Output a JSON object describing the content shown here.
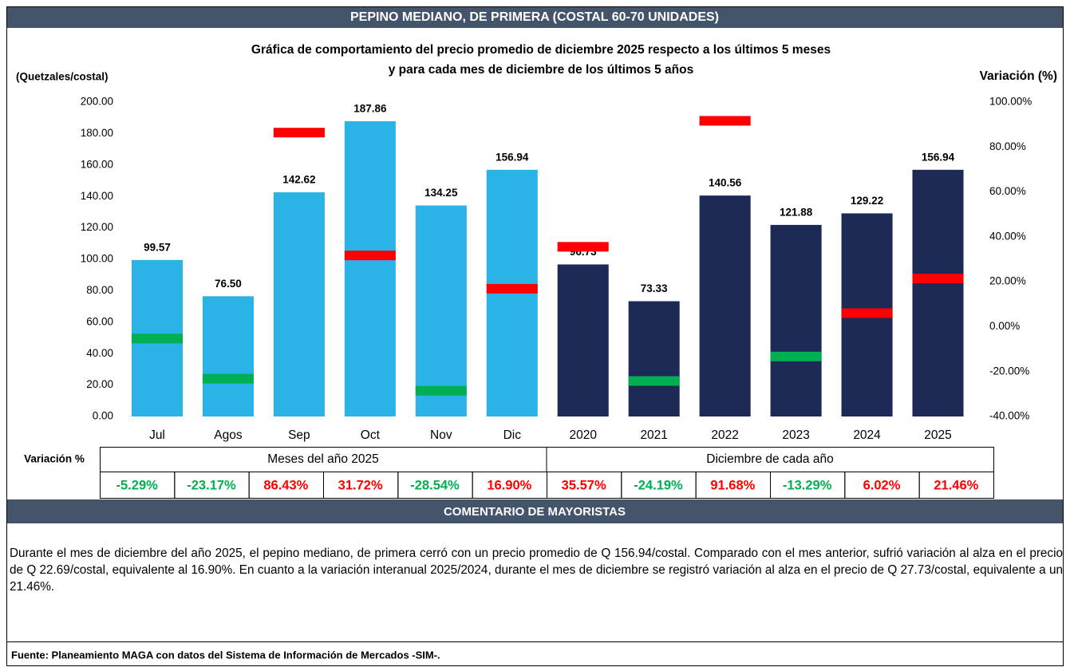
{
  "header": {
    "title": "PEPINO MEDIANO, DE PRIMERA (COSTAL 60-70 UNIDADES)"
  },
  "chart_data": {
    "type": "bar",
    "title_lines": [
      "Gráfica de comportamiento del precio promedio de diciembre 2025 respecto a los últimos 5 meses",
      "y para cada mes de diciembre de los últimos 5 años"
    ],
    "ylabel": "(Quetzales/costal)",
    "y2label": "Variación (%)",
    "categories": [
      "Jul",
      "Agos",
      "Sep",
      "Oct",
      "Nov",
      "Dic",
      "2020",
      "2021",
      "2022",
      "2023",
      "2024",
      "2025"
    ],
    "series": [
      {
        "colors": [
          "#29b3e6",
          "#29b3e6",
          "#29b3e6",
          "#29b3e6",
          "#29b3e6",
          "#29b3e6",
          "#1c2a55",
          "#1c2a55",
          "#1c2a55",
          "#1c2a55",
          "#1c2a55",
          "#1c2a55"
        ],
        "values": [
          99.57,
          76.5,
          142.62,
          187.86,
          134.25,
          156.94,
          96.73,
          73.33,
          140.56,
          121.88,
          129.22,
          156.94
        ],
        "value_labels": [
          "99.57",
          "76.50",
          "142.62",
          "187.86",
          "134.25",
          "156.94",
          "96.73",
          "73.33",
          "140.56",
          "121.88",
          "129.22",
          "156.94"
        ]
      },
      {
        "axis": "y2",
        "increase_color": "#ff0000",
        "decrease_color": "#00b050",
        "values": [
          -5.29,
          -23.17,
          86.43,
          31.72,
          -28.54,
          16.9,
          35.57,
          -24.19,
          91.68,
          -13.29,
          6.02,
          21.46
        ],
        "value_labels": [
          "-5.29%",
          "-23.17%",
          "86.43%",
          "31.72%",
          "-28.54%",
          "16.90%",
          "35.57%",
          "-24.19%",
          "91.68%",
          "-13.29%",
          "6.02%",
          "21.46%"
        ]
      }
    ],
    "ylim": [
      0,
      200
    ],
    "yticks": [
      {
        "value": 0,
        "label": "0.00"
      },
      {
        "value": 20,
        "label": "20.00"
      },
      {
        "value": 40,
        "label": "40.00"
      },
      {
        "value": 60,
        "label": "60.00"
      },
      {
        "value": 80,
        "label": "80.00"
      },
      {
        "value": 100,
        "label": "100.00"
      },
      {
        "value": 120,
        "label": "120.00"
      },
      {
        "value": 140,
        "label": "140.00"
      },
      {
        "value": 160,
        "label": "160.00"
      },
      {
        "value": 180,
        "label": "180.00"
      },
      {
        "value": 200,
        "label": "200.00"
      }
    ],
    "y2lim": [
      -40,
      100
    ],
    "y2ticks": [
      {
        "value": -40,
        "label": "-40.00%"
      },
      {
        "value": -20,
        "label": "-20.00%"
      },
      {
        "value": 0,
        "label": "0.00%"
      },
      {
        "value": 20,
        "label": "20.00%"
      },
      {
        "value": 40,
        "label": "40.00%"
      },
      {
        "value": 60,
        "label": "60.00%"
      },
      {
        "value": 80,
        "label": "80.00%"
      },
      {
        "value": 100,
        "label": "100.00%"
      }
    ],
    "grid": false
  },
  "table": {
    "row_label": "Variación %",
    "groups": [
      "Meses del año  2025",
      "Diciembre de cada año"
    ]
  },
  "comment": {
    "title": "COMENTARIO DE MAYORISTAS",
    "text": "Durante el mes de diciembre del año 2025, el pepino mediano, de primera cerró con un precio promedio de Q 156.94/costal. Comparado con el mes anterior, sufrió variación al alza en el precio de Q 22.69/costal, equivalente al 16.90%. En cuanto a la variación interanual 2025/2024, durante el mes de diciembre se registró variación al alza en el precio de Q 27.73/costal, equivalente a un 21.46%."
  },
  "footer": {
    "source": "Fuente: Planeamiento MAGA con datos del  Sistema de Información de Mercados -SIM-."
  }
}
